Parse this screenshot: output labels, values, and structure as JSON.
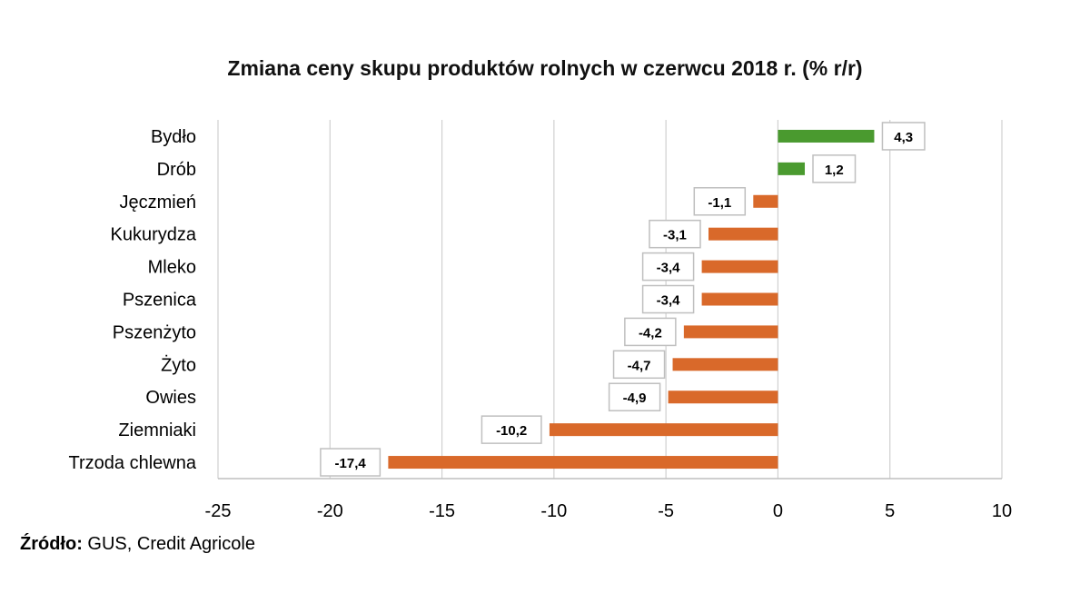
{
  "chart_data": {
    "type": "bar",
    "orientation": "horizontal",
    "title": "Zmiana ceny skupu produktów rolnych w czerwcu 2018 r. (% r/r)",
    "categories": [
      "Bydło",
      "Drób",
      "Jęczmień",
      "Kukurydza",
      "Mleko",
      "Pszenica",
      "Pszenżyto",
      "Żyto",
      "Owies",
      "Ziemniaki",
      "Trzoda chlewna"
    ],
    "values": [
      4.3,
      1.2,
      -1.1,
      -3.1,
      -3.4,
      -3.4,
      -4.2,
      -4.7,
      -4.9,
      -10.2,
      -17.4
    ],
    "data_labels": [
      "4,3",
      "1,2",
      "-1,1",
      "-3,1",
      "-3,4",
      "-3,4",
      "-4,2",
      "-4,7",
      "-4,9",
      "-10,2",
      "-17,4"
    ],
    "xlim": [
      -25,
      10
    ],
    "xticks": [
      -25,
      -20,
      -15,
      -10,
      -5,
      0,
      5,
      10
    ],
    "xtick_labels": [
      "-25",
      "-20",
      "-15",
      "-10",
      "-5",
      "0",
      "5",
      "10"
    ],
    "xlabel": "",
    "ylabel": "",
    "grid": true,
    "legend": "none",
    "colors": {
      "positive": "#4a9a2f",
      "negative": "#d9692a",
      "grid": "#d0d0d0",
      "axis": "#bfbfbf"
    }
  },
  "source": {
    "label": "Źródło:",
    "text": " GUS, Credit Agricole"
  }
}
